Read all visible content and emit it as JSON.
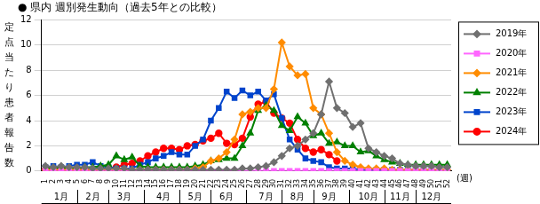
{
  "chart_data": {
    "type": "line",
    "title": "● 県内 週別発生動向（過去5年との比較）",
    "y_label": "定点当たり患者報告数",
    "x_label": "(週)",
    "categories": [
      1,
      2,
      3,
      4,
      5,
      6,
      7,
      8,
      9,
      10,
      11,
      12,
      13,
      14,
      15,
      16,
      17,
      18,
      19,
      20,
      21,
      22,
      23,
      24,
      25,
      26,
      27,
      28,
      29,
      30,
      31,
      32,
      33,
      34,
      35,
      36,
      37,
      38,
      39,
      40,
      41,
      42,
      43,
      44,
      45,
      46,
      47,
      48,
      49,
      50,
      51,
      52
    ],
    "month_labels": [
      null,
      null,
      "1月",
      null,
      null,
      null,
      "2月",
      null,
      null,
      null,
      "3月",
      null,
      null,
      null,
      null,
      "4月",
      null,
      null,
      null,
      "5月",
      null,
      null,
      null,
      "6月",
      null,
      null,
      null,
      null,
      "7月",
      null,
      null,
      null,
      "8月",
      null,
      null,
      null,
      "9月",
      null,
      null,
      null,
      null,
      "10月",
      null,
      null,
      null,
      "11月",
      null,
      null,
      null,
      "12月",
      null,
      null
    ],
    "ylim": [
      0,
      12
    ],
    "yticks": [
      0,
      2,
      4,
      6,
      8,
      10,
      12
    ],
    "grid": true,
    "legend": "right",
    "series": [
      {
        "name": "2019年",
        "color": "#707070",
        "marker": "diamond",
        "values": [
          0.4,
          0.3,
          0.4,
          0.3,
          0.3,
          0.3,
          0.2,
          0.2,
          0.2,
          0.2,
          0.2,
          0.1,
          0.1,
          0.1,
          0.1,
          0.1,
          0.1,
          0.1,
          0.1,
          0.1,
          0.1,
          0.1,
          0.1,
          0.1,
          0.1,
          0.2,
          0.2,
          0.3,
          0.4,
          0.7,
          1.2,
          1.8,
          2.0,
          2.5,
          3.0,
          4.5,
          7.1,
          5.0,
          4.6,
          3.5,
          3.8,
          1.8,
          1.5,
          1.2,
          1.0,
          0.6,
          0.5,
          0.4,
          0.4,
          0.4,
          0.3,
          0.3
        ]
      },
      {
        "name": "2020年",
        "color": "#ff66ff",
        "marker": "square",
        "values": [
          0,
          0,
          0,
          0,
          0,
          0,
          0,
          0,
          0,
          0,
          0,
          0,
          0,
          0,
          0,
          0,
          0,
          0,
          0,
          0,
          0,
          0,
          0,
          0,
          0,
          0,
          0,
          0,
          0,
          0,
          0,
          0,
          0,
          0,
          0,
          0,
          0,
          0,
          0,
          0,
          0,
          0,
          0,
          0,
          0,
          0,
          0,
          0,
          0,
          0,
          0,
          0
        ]
      },
      {
        "name": "2021年",
        "color": "#ff8c00",
        "marker": "diamond",
        "values": [
          0.1,
          0.1,
          0.1,
          0.1,
          0.1,
          0.1,
          0.1,
          0.1,
          0.1,
          0.1,
          0.1,
          0.1,
          0.1,
          0.1,
          0.1,
          0.1,
          0.1,
          0.1,
          0.1,
          0.2,
          0.3,
          0.8,
          1.0,
          1.5,
          2.5,
          4.5,
          4.7,
          5.0,
          5.0,
          6.5,
          10.2,
          8.3,
          7.6,
          7.7,
          5.0,
          4.5,
          3.0,
          1.5,
          0.8,
          0.5,
          0.3,
          0.2,
          0.2,
          0.2,
          0.1,
          0.1,
          0.1,
          0.1,
          0.1,
          0.1,
          0.1,
          0.1
        ]
      },
      {
        "name": "2022年",
        "color": "#008000",
        "marker": "triangle",
        "values": [
          0.2,
          0.2,
          0.3,
          0.2,
          0.2,
          0.3,
          0.3,
          0.4,
          0.5,
          1.2,
          0.9,
          1.1,
          0.4,
          0.3,
          0.3,
          0.3,
          0.3,
          0.3,
          0.3,
          0.4,
          0.5,
          0.8,
          0.9,
          1.0,
          1.0,
          2.0,
          3.0,
          4.8,
          5.2,
          4.8,
          3.6,
          3.2,
          4.3,
          3.8,
          2.8,
          3.0,
          2.2,
          2.3,
          2.0,
          2.0,
          1.5,
          1.6,
          1.2,
          0.9,
          0.7,
          0.6,
          0.5,
          0.5,
          0.5,
          0.5,
          0.5,
          0.5
        ]
      },
      {
        "name": "2023年",
        "color": "#0044cc",
        "marker": "square",
        "values": [
          0.3,
          0.4,
          0.3,
          0.4,
          0.5,
          0.5,
          0.7,
          0.4,
          0.3,
          0.2,
          0.2,
          0.2,
          0.5,
          0.7,
          1.0,
          1.2,
          1.5,
          1.3,
          1.3,
          2.0,
          2.5,
          4.0,
          5.0,
          6.3,
          5.8,
          6.4,
          6.0,
          6.3,
          5.6,
          6.1,
          4.2,
          2.5,
          1.7,
          1.0,
          0.8,
          0.7,
          0.3,
          0.2,
          0.2,
          0.2,
          0.1,
          0.1,
          0.1,
          0.1,
          0.1,
          0.1,
          0.1,
          0.1,
          0.1,
          0.1,
          0.1,
          0.1
        ]
      },
      {
        "name": "2024年",
        "color": "#ff0000",
        "marker": "circle",
        "values": [
          0.1,
          0.2,
          0.1,
          0.1,
          0.1,
          0.1,
          0.1,
          0.2,
          0.2,
          0.3,
          0.5,
          0.6,
          0.8,
          1.2,
          1.5,
          1.8,
          1.8,
          1.7,
          2.0,
          2.1,
          2.4,
          2.6,
          3.0,
          2.2,
          2.1,
          2.6,
          4.3,
          5.3,
          5.5,
          4.6,
          4.2,
          3.8,
          2.5,
          1.8,
          1.5,
          1.7,
          1.3,
          0.8,
          null,
          null,
          null,
          null,
          null,
          null,
          null,
          null,
          null,
          null,
          null,
          null,
          null,
          null
        ]
      }
    ]
  }
}
